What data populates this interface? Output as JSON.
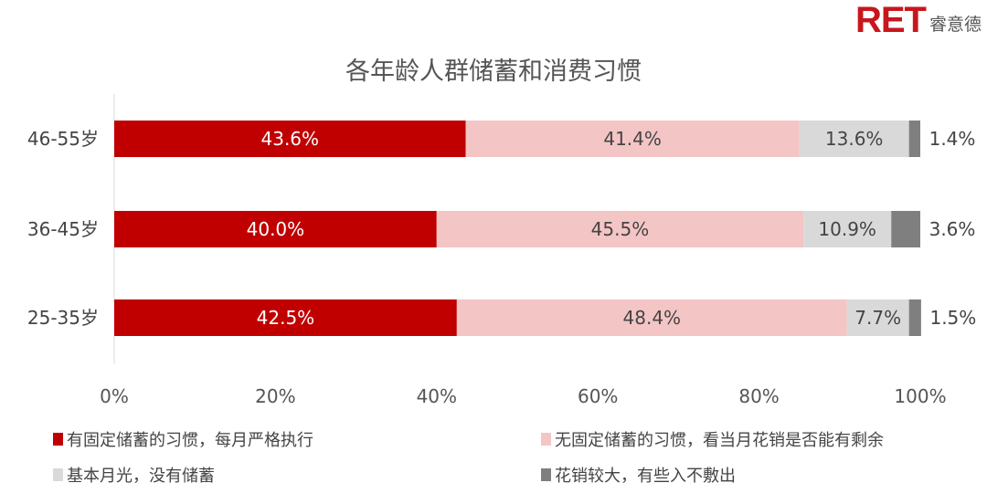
{
  "logo": {
    "brand": "RET",
    "name": "睿意德"
  },
  "chart_data": {
    "type": "bar",
    "orientation": "horizontal",
    "stacked": true,
    "title": "各年龄人群储蓄和消费习惯",
    "categories": [
      "46-55岁",
      "36-45岁",
      "25-35岁"
    ],
    "xlim": [
      0,
      100
    ],
    "xticks": [
      "0%",
      "20%",
      "40%",
      "60%",
      "80%",
      "100%"
    ],
    "grid": false,
    "legend_position": "bottom",
    "series": [
      {
        "name": "有固定储蓄的习惯，每月严格执行",
        "color": "#c00000",
        "values": [
          43.6,
          40.0,
          42.5
        ],
        "labels": [
          "43.6%",
          "40.0%",
          "42.5%"
        ]
      },
      {
        "name": "无固定储蓄的习惯，看当月花销是否能有剩余",
        "color": "#f4c5c5",
        "values": [
          41.4,
          45.5,
          48.4
        ],
        "labels": [
          "41.4%",
          "45.5%",
          "48.4%"
        ]
      },
      {
        "name": "基本月光，没有储蓄",
        "color": "#d9d9d9",
        "values": [
          13.6,
          10.9,
          7.7
        ],
        "labels": [
          "13.6%",
          "10.9%",
          "7.7%"
        ]
      },
      {
        "name": "花销较大，有些入不敷出",
        "color": "#7f7f7f",
        "values": [
          1.4,
          3.6,
          1.5
        ],
        "labels": [
          "1.4%",
          "3.6%",
          "1.5%"
        ]
      }
    ]
  }
}
